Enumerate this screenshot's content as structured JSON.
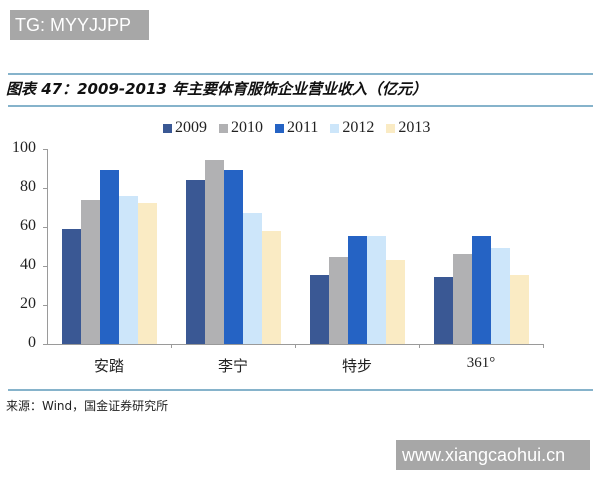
{
  "watermarks": {
    "top": "TG: MYYJJPP",
    "bottom": "www.xiangcaohui.cn"
  },
  "header": {
    "title": "图表 47：2009-2013 年主要体育服饰企业营业收入（亿元）"
  },
  "footer": {
    "source": "来源：Wind，国金证券研究所"
  },
  "colors": {
    "2009": "#3A5894",
    "2010": "#B1B1B3",
    "2011": "#2563C4",
    "2012": "#CDE6FA",
    "2013": "#FAEBC4",
    "rule": "#86B3CB",
    "watermark_bg": "#A7A7A7"
  },
  "chart_data": {
    "type": "bar",
    "title": "2009-2013 年主要体育服饰企业营业收入（亿元）",
    "xlabel": "",
    "ylabel": "",
    "ylim": [
      0,
      100
    ],
    "yticks": [
      0,
      20,
      40,
      60,
      80,
      100
    ],
    "grid": false,
    "legend_position": "top",
    "categories": [
      "安踏",
      "李宁",
      "特步",
      "361°"
    ],
    "series": [
      {
        "name": "2009",
        "values": [
          59,
          84,
          35.6,
          34.6
        ]
      },
      {
        "name": "2010",
        "values": [
          74,
          94.5,
          44.4,
          46
        ]
      },
      {
        "name": "2011",
        "values": [
          89,
          89,
          55.4,
          55.5
        ]
      },
      {
        "name": "2012",
        "values": [
          76,
          67,
          55.4,
          49
        ]
      },
      {
        "name": "2013",
        "values": [
          72.5,
          58,
          43,
          35.6
        ]
      }
    ]
  }
}
